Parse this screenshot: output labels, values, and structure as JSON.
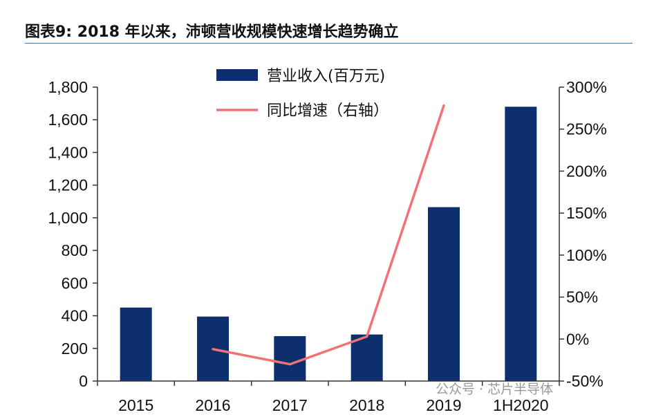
{
  "title": "图表9:  2018 年以来，沛顿营收规模快速增长趋势确立",
  "watermark": "公众号 · 芯片半导体",
  "colors": {
    "bar": "#0e2f6e",
    "line": "#f07272",
    "axis": "#333333",
    "text": "#111111"
  },
  "chart_data": {
    "type": "bar",
    "categories": [
      "2015",
      "2016",
      "2017",
      "2018",
      "2019",
      "1H2020"
    ],
    "series": [
      {
        "name": "营业收入(百万元)",
        "type": "bar",
        "axis": "left",
        "values": [
          450,
          395,
          275,
          285,
          1065,
          1680
        ]
      },
      {
        "name": "同比增速（右轴）",
        "type": "line",
        "axis": "right",
        "values": [
          null,
          -12,
          -30,
          3,
          278,
          null
        ]
      }
    ],
    "y_left": {
      "min": 0,
      "max": 1800,
      "ticks": [
        "0",
        "200",
        "400",
        "600",
        "800",
        "1,000",
        "1,200",
        "1,400",
        "1,600",
        "1,800"
      ]
    },
    "y_right": {
      "min": -50,
      "max": 300,
      "ticks": [
        "-50%",
        "0%",
        "50%",
        "100%",
        "150%",
        "200%",
        "250%",
        "300%"
      ]
    },
    "legend_position": "top-center",
    "grid": false
  }
}
